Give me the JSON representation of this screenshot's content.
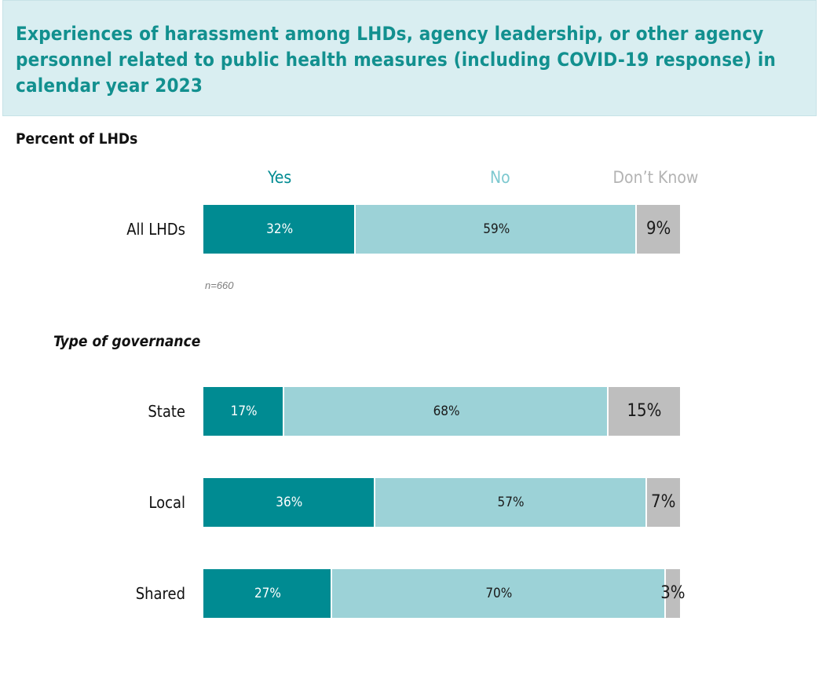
{
  "title": "Experiences of harassment among LHDs, agency leadership, or other agency personnel related to public health measures (including COVID-19 response) in calendar year 2023",
  "subtitle": "Percent of LHDs",
  "note": "n=660",
  "section_label": "Type of governance",
  "colors": {
    "yes": "#008b92",
    "no": "#9cd2d7",
    "dont_know": "#bebebe",
    "title": "#12908f",
    "title_bg": "#d9eef1"
  },
  "chart_data": {
    "type": "bar",
    "orientation": "horizontal",
    "stacked": true,
    "unit": "%",
    "categories": [
      "All LHDs",
      "State",
      "Local",
      "Shared"
    ],
    "series": [
      {
        "name": "Yes",
        "values": [
          32,
          17,
          36,
          27
        ]
      },
      {
        "name": "No",
        "values": [
          59,
          68,
          57,
          70
        ]
      },
      {
        "name": "Don’t Know",
        "values": [
          9,
          15,
          7,
          3
        ]
      }
    ],
    "xlim": [
      0,
      100
    ],
    "legend": "top",
    "grid": false
  }
}
